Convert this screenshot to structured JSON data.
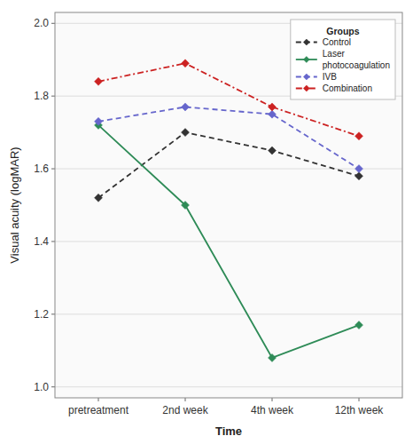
{
  "chart_data": {
    "type": "line",
    "categories": [
      "pretreatment",
      "2nd week",
      "4th week",
      "12th week"
    ],
    "series": [
      {
        "name": "Control",
        "color": "#333333",
        "values": [
          1.52,
          1.7,
          1.65,
          1.58
        ],
        "marker": "diamond",
        "line_style": "dashed"
      },
      {
        "name": "Laser\nphotocoagulation",
        "color": "#2e8b57",
        "values": [
          1.72,
          1.5,
          1.08,
          1.17
        ],
        "marker": "diamond",
        "line_style": "solid"
      },
      {
        "name": "IVB",
        "color": "#6666cc",
        "values": [
          1.73,
          1.77,
          1.75,
          1.6
        ],
        "marker": "diamond",
        "line_style": "dashed"
      },
      {
        "name": "Combination",
        "color": "#cc2222",
        "values": [
          1.84,
          1.89,
          1.77,
          1.69
        ],
        "marker": "diamond",
        "line_style": "dashdot"
      }
    ],
    "x_label": "Time",
    "y_label": "Visual acuity (logMAR)",
    "legend_title": "Groups",
    "ylim": [
      0.97,
      2.03
    ],
    "yticks": [
      {
        "value": 1.0,
        "label": "1.0"
      },
      1.2,
      1.4,
      1.6,
      1.8,
      {
        "value": 2.0,
        "label": "2.0"
      }
    ],
    "grid": true,
    "legend": "upper right"
  }
}
